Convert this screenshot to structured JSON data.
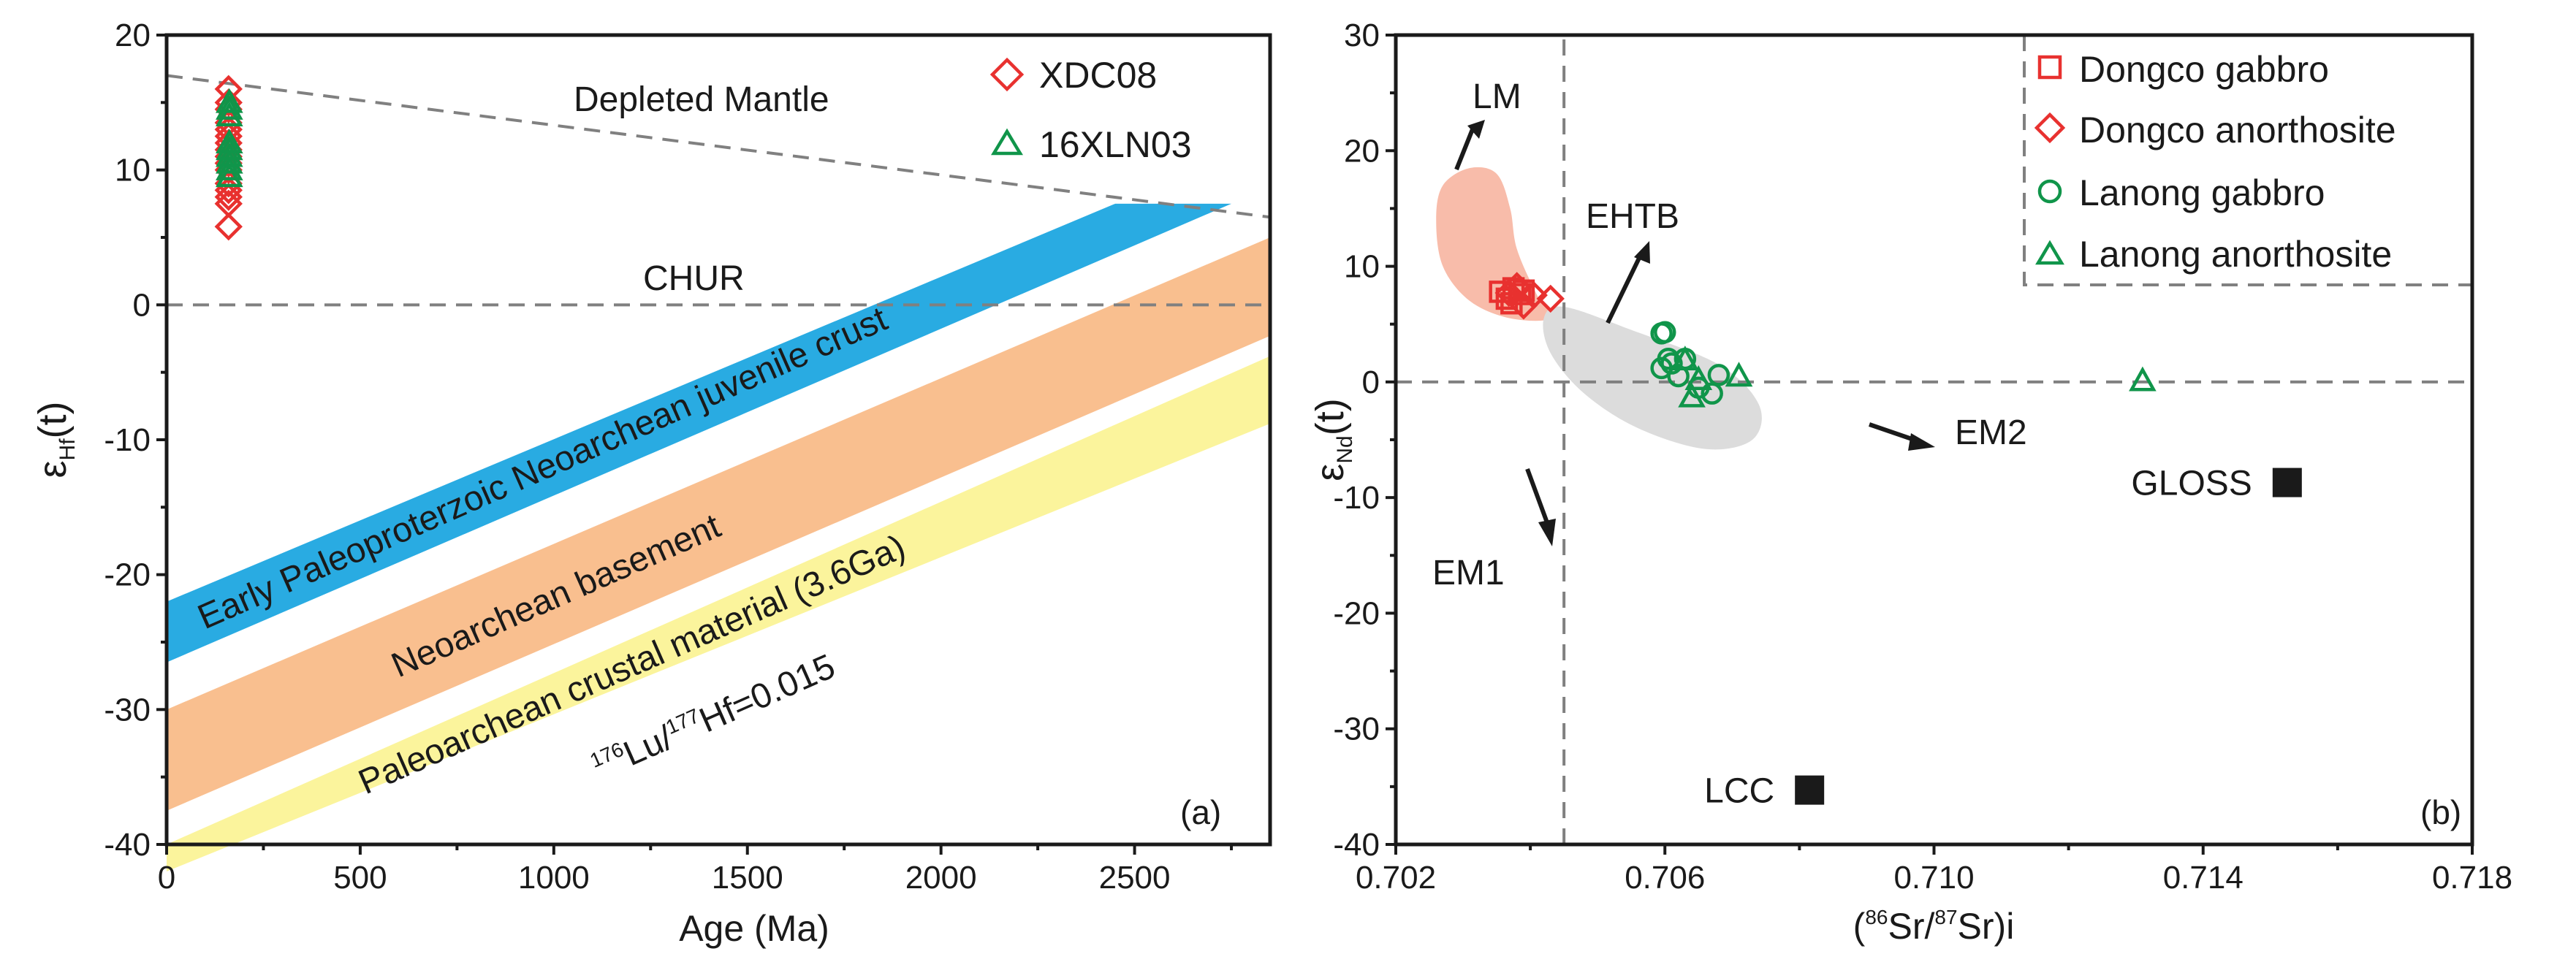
{
  "chart_data": [
    {
      "id": "a",
      "type": "scatter",
      "panel_label": "(a)",
      "xlabel": "Age (Ma)",
      "ylabel": {
        "base": "ε",
        "sub": "Hf",
        "suffix": "(t)"
      },
      "xlim": [
        0,
        2850
      ],
      "ylim": [
        -40,
        20
      ],
      "xticks": [
        0,
        500,
        1000,
        1500,
        2000,
        2500
      ],
      "yticks": [
        -40,
        -30,
        -20,
        -10,
        0,
        10,
        20
      ],
      "minor_xticks": [
        250,
        750,
        1250,
        1750,
        2250,
        2750
      ],
      "minor_yticks": [
        -35,
        -25,
        -15,
        -5,
        5,
        15
      ],
      "reference_lines": [
        {
          "name": "Depleted Mantle",
          "label": "Depleted Mantle",
          "x": [
            0,
            2850
          ],
          "y": [
            17,
            6.5
          ]
        },
        {
          "name": "CHUR",
          "label": "CHUR",
          "x": [
            0,
            2850
          ],
          "y": [
            0,
            0
          ]
        }
      ],
      "bands": [
        {
          "name": "Early Paleoproterzoic Neoarchean juvenile crust",
          "color": "#29abe2",
          "polygon": [
            [
              0,
              -26.5
            ],
            [
              0,
              -22
            ],
            [
              2450,
              7.5
            ],
            [
              2750,
              7.5
            ]
          ]
        },
        {
          "name": "Neoarchean basement",
          "color": "#f9bf8f",
          "polygon": [
            [
              0,
              -37.5
            ],
            [
              0,
              -30
            ],
            [
              2850,
              5
            ],
            [
              2850,
              -2.3
            ]
          ]
        },
        {
          "name": "Paleoarchean crustal material (3.6Ga)",
          "color": "#fbf49c",
          "polygon": [
            [
              0,
              -42
            ],
            [
              0,
              -40
            ],
            [
              2850,
              -3.8
            ],
            [
              2850,
              -8.8
            ]
          ]
        }
      ],
      "annotations": {
        "depleted_mantle": "Depleted Mantle",
        "chur": "CHUR",
        "band1": "Early Paleoproterzoic Neoarchean juvenile crust",
        "band2": "Neoarchean basement",
        "band3": "Paleoarchean crustal material (3.6Ga)",
        "lu_hf": {
          "sup1": "176",
          "t1": "Lu/",
          "sup2": "177",
          "t2": "Hf=0.015"
        }
      },
      "series": [
        {
          "name": "XDC08",
          "marker": "diamond",
          "color": "#e8312f",
          "points": [
            [
              160,
              16
            ],
            [
              160,
              15
            ],
            [
              160,
              14.5
            ],
            [
              160,
              13.5
            ],
            [
              160,
              13
            ],
            [
              160,
              12.5
            ],
            [
              160,
              12
            ],
            [
              160,
              11.5
            ],
            [
              160,
              11
            ],
            [
              160,
              10.5
            ],
            [
              160,
              10
            ],
            [
              160,
              9
            ],
            [
              160,
              8.5
            ],
            [
              160,
              8
            ],
            [
              160,
              7.5
            ],
            [
              160,
              5.8
            ]
          ]
        },
        {
          "name": "16XLN03",
          "marker": "triangle",
          "color": "#10954a",
          "points": [
            [
              162,
              15
            ],
            [
              162,
              14.5
            ],
            [
              162,
              14
            ],
            [
              162,
              12
            ],
            [
              162,
              11.5
            ],
            [
              162,
              11
            ],
            [
              162,
              10.5
            ],
            [
              162,
              10
            ],
            [
              162,
              9.5
            ]
          ]
        }
      ]
    },
    {
      "id": "b",
      "type": "scatter",
      "panel_label": "(b)",
      "xlabel": {
        "open": "(",
        "sup1": "86",
        "t1": "Sr/",
        "sup2": "87",
        "t2": "Sr)i"
      },
      "ylabel": {
        "base": "ε",
        "sub": "Nd",
        "suffix": "(t)"
      },
      "xlim": [
        0.702,
        0.718
      ],
      "ylim": [
        -40,
        30
      ],
      "xticks": [
        0.702,
        0.706,
        0.71,
        0.714,
        0.718
      ],
      "xtick_labels": [
        "0.702",
        "0.706",
        "0.710",
        "0.714",
        "0.718"
      ],
      "yticks": [
        -40,
        -30,
        -20,
        -10,
        0,
        10,
        20,
        30
      ],
      "minor_xticks": [
        0.704,
        0.708,
        0.712,
        0.716
      ],
      "minor_yticks": [
        -35,
        -25,
        -15,
        -5,
        5,
        15,
        25
      ],
      "reference_lines": [
        {
          "name": "epsilon-zero",
          "x": [
            0.702,
            0.718
          ],
          "y": [
            0,
            0
          ]
        },
        {
          "name": "bulk-earth-sr",
          "x": [
            0.7045,
            0.7045
          ],
          "y": [
            -40,
            30
          ]
        }
      ],
      "fields": [
        {
          "name": "LM",
          "color": "#f8bcaa",
          "outline": [
            [
              0.7031,
              18.5
            ],
            [
              0.7035,
              18.0
            ],
            [
              0.7037,
              15.0
            ],
            [
              0.7038,
              11.5
            ],
            [
              0.7041,
              7.5
            ],
            [
              0.7043,
              5.5
            ],
            [
              0.7037,
              5.5
            ],
            [
              0.7031,
              7.0
            ],
            [
              0.7027,
              10.0
            ],
            [
              0.7026,
              14.0
            ],
            [
              0.7027,
              17.0
            ]
          ]
        },
        {
          "name": "EHTB",
          "color": "#dcdcdc",
          "outline": [
            [
              0.7045,
              6.5
            ],
            [
              0.7055,
              4.5
            ],
            [
              0.7068,
              1.5
            ],
            [
              0.7074,
              -2.0
            ],
            [
              0.7073,
              -5.0
            ],
            [
              0.7066,
              -5.8
            ],
            [
              0.7056,
              -4.0
            ],
            [
              0.7048,
              -1.0
            ],
            [
              0.7043,
              2.5
            ],
            [
              0.7042,
              5.5
            ]
          ]
        }
      ],
      "field_labels": {
        "lm": "LM",
        "ehtb": "EHTB"
      },
      "end_members": {
        "em1": "EM1",
        "em2": "EM2"
      },
      "reference_points": [
        {
          "name": "GLOSS",
          "x": 0.71525,
          "y": -8.7
        },
        {
          "name": "LCC",
          "x": 0.70815,
          "y": -35.3
        }
      ],
      "series": [
        {
          "name": "Dongco gabbro",
          "marker": "square",
          "color": "#e8312f",
          "points": [
            [
              0.70355,
              7.8
            ],
            [
              0.70365,
              7.2
            ],
            [
              0.70375,
              8.1
            ],
            [
              0.70385,
              7.6
            ],
            [
              0.70372,
              6.8
            ],
            [
              0.7039,
              7.9
            ]
          ]
        },
        {
          "name": "Dongco anorthosite",
          "marker": "diamond",
          "color": "#e8312f",
          "points": [
            [
              0.7038,
              8.3
            ],
            [
              0.7039,
              6.6
            ],
            [
              0.70405,
              7.5
            ],
            [
              0.7043,
              7.2
            ],
            [
              0.70368,
              7.7
            ]
          ]
        },
        {
          "name": "Lanong gabbro",
          "marker": "circle",
          "color": "#10954a",
          "points": [
            [
              0.70595,
              4.2
            ],
            [
              0.706,
              4.3
            ],
            [
              0.70605,
              2.0
            ],
            [
              0.7061,
              1.6
            ],
            [
              0.70595,
              1.2
            ],
            [
              0.7062,
              0.5
            ],
            [
              0.7063,
              2.0
            ],
            [
              0.7065,
              -0.5
            ],
            [
              0.7067,
              -1.0
            ],
            [
              0.7068,
              0.6
            ]
          ]
        },
        {
          "name": "Lanong anorthosite",
          "marker": "triangle",
          "color": "#10954a",
          "points": [
            [
              0.7063,
              1.9
            ],
            [
              0.7064,
              -1.3
            ],
            [
              0.7065,
              0.2
            ],
            [
              0.7071,
              0.5
            ],
            [
              0.7131,
              0.1
            ]
          ]
        }
      ]
    }
  ]
}
